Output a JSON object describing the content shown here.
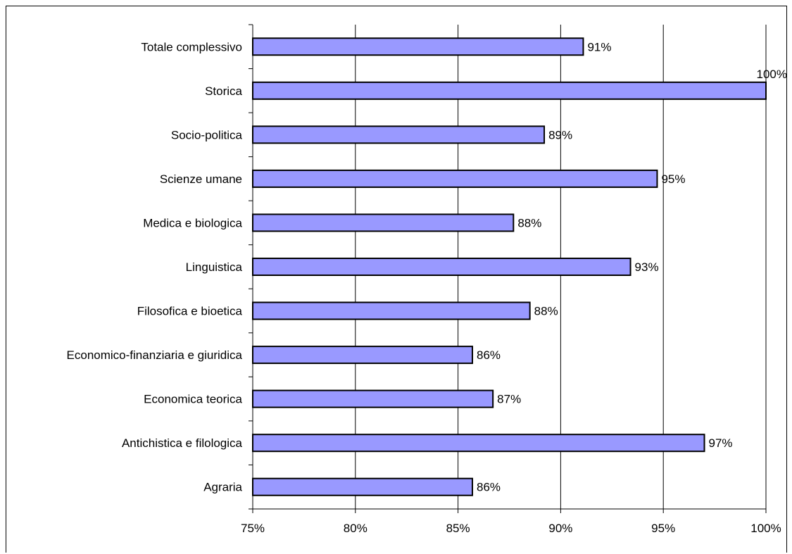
{
  "chart_data": {
    "type": "bar",
    "orientation": "horizontal",
    "title": "",
    "xlabel": "",
    "ylabel": "",
    "xlim": [
      0.75,
      1.0
    ],
    "x_ticks": [
      0.75,
      0.8,
      0.85,
      0.9,
      0.95,
      1.0
    ],
    "x_tick_labels": [
      "75%",
      "80%",
      "85%",
      "90%",
      "95%",
      "100%"
    ],
    "grid": "vertical",
    "legend": "none",
    "bar_color": "#9999FF",
    "bar_edge_color": "#000000",
    "categories": [
      "Totale complessivo",
      "Storica",
      "Socio-politica",
      "Scienze umane",
      "Medica e biologica",
      "Linguistica",
      "Filosofica e bioetica",
      "Economico-finanziaria e giuridica",
      "Economica teorica",
      "Antichistica e filologica",
      "Agraria"
    ],
    "values": [
      0.911,
      1.0,
      0.892,
      0.947,
      0.877,
      0.934,
      0.885,
      0.857,
      0.867,
      0.97,
      0.857
    ],
    "data_labels": [
      "91%",
      "100%",
      "89%",
      "95%",
      "88%",
      "93%",
      "88%",
      "86%",
      "87%",
      "97%",
      "86%"
    ]
  }
}
